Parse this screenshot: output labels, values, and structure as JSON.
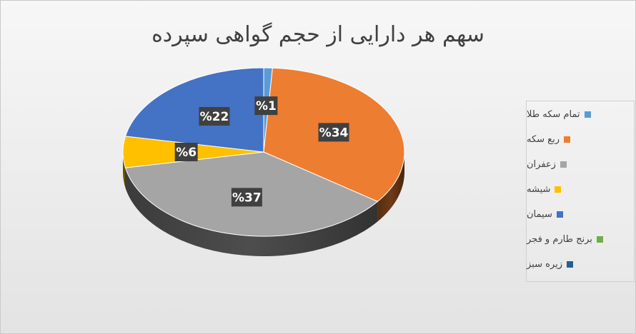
{
  "chart_data": {
    "type": "pie",
    "title": "سهم هر دارایی از حجم گواهی سپرده",
    "slices": [
      {
        "name": "تمام سکه طلا",
        "value": 1,
        "label": "%1",
        "color": "#5B9BD5"
      },
      {
        "name": "ربع سکه",
        "value": 34,
        "label": "%34",
        "color": "#ED7D31"
      },
      {
        "name": "زعفران",
        "value": 37,
        "label": "%37",
        "color": "#A5A5A5"
      },
      {
        "name": "شیشه",
        "value": 6,
        "label": "%6",
        "color": "#FFC000"
      },
      {
        "name": "سیمان",
        "value": 22,
        "label": "%22",
        "color": "#4472C4"
      },
      {
        "name": "برنج طارم و فجر",
        "value": 0,
        "label": "",
        "color": "#70AD47"
      },
      {
        "name": "زیره سبز",
        "value": 0,
        "label": "",
        "color": "#255E91"
      }
    ],
    "legend_position": "right",
    "style": "3d"
  }
}
